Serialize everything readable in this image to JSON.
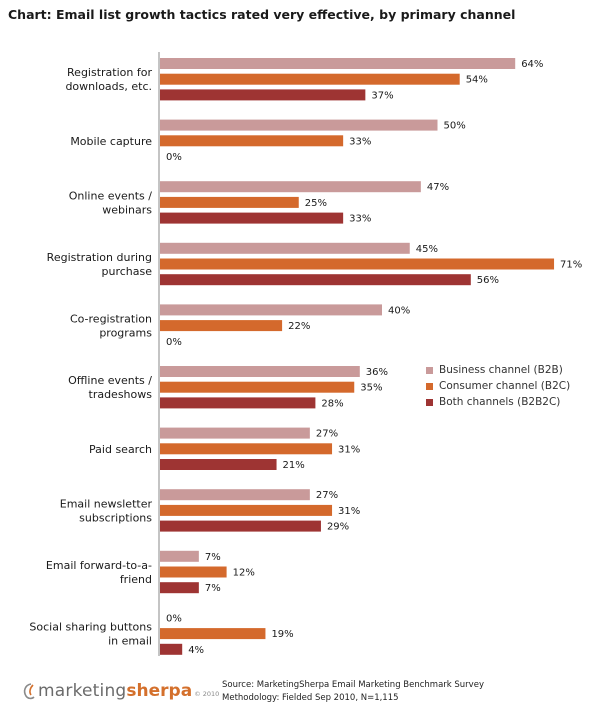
{
  "title": "Chart: Email list growth tactics rated very effective, by primary channel",
  "chart_data": {
    "type": "bar",
    "orientation": "horizontal",
    "categories": [
      [
        "Registration for",
        "downloads, etc."
      ],
      [
        "Mobile capture"
      ],
      [
        "Online events /",
        "webinars"
      ],
      [
        "Registration during",
        "purchase"
      ],
      [
        "Co-registration",
        "programs"
      ],
      [
        "Offline events /",
        "tradeshows"
      ],
      [
        "Paid search"
      ],
      [
        "Email newsletter",
        "subscriptions"
      ],
      [
        "Email forward-to-a-",
        "friend"
      ],
      [
        "Social sharing buttons",
        "in email"
      ]
    ],
    "series": [
      {
        "name": "Business channel (B2B)",
        "color": "#c99a9a",
        "values": [
          64,
          50,
          47,
          45,
          40,
          36,
          27,
          27,
          7,
          0
        ]
      },
      {
        "name": "Consumer channel (B2C)",
        "color": "#d4692c",
        "values": [
          54,
          33,
          25,
          71,
          22,
          35,
          31,
          31,
          12,
          19
        ]
      },
      {
        "name": "Both channels (B2B2C)",
        "color": "#9e3433",
        "values": [
          37,
          0,
          33,
          56,
          0,
          28,
          21,
          29,
          7,
          4
        ]
      }
    ],
    "value_suffix": "%",
    "xlim": [
      0,
      100
    ],
    "legend_position": "right",
    "grid": false
  },
  "footer": {
    "logo_part1": "marketing",
    "logo_part2": "sherpa",
    "logo_year": "© 2010",
    "source_line1": "Source: MarketingSherpa Email Marketing Benchmark Survey",
    "source_line2": "Methodology: Fielded Sep 2010, N=1,115"
  }
}
